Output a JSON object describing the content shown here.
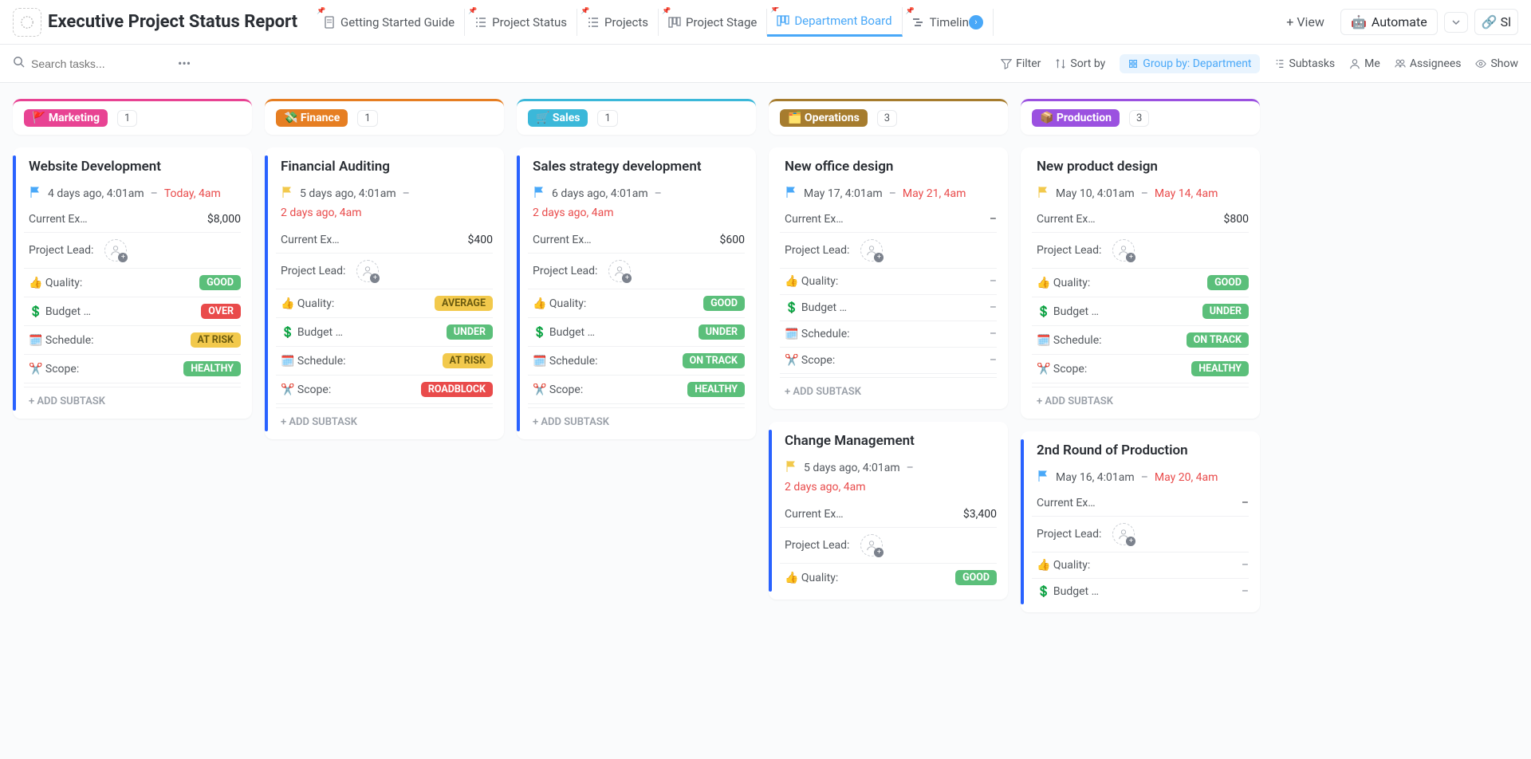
{
  "header": {
    "title": "Executive Project Status Report",
    "tabs": [
      {
        "label": "Getting Started Guide",
        "icon": "doc"
      },
      {
        "label": "Project Status",
        "icon": "list"
      },
      {
        "label": "Projects",
        "icon": "list"
      },
      {
        "label": "Project Stage",
        "icon": "board"
      },
      {
        "label": "Department Board",
        "icon": "board",
        "active": true
      },
      {
        "label": "Timelin",
        "icon": "timeline",
        "truncated": true
      }
    ],
    "add_view_label": "View",
    "automate_label": "Automate",
    "share_label": "Sl"
  },
  "toolbar": {
    "search_placeholder": "Search tasks...",
    "filter_label": "Filter",
    "sort_label": "Sort by",
    "group_label": "Group by: Department",
    "subtasks_label": "Subtasks",
    "me_label": "Me",
    "assignees_label": "Assignees",
    "show_label": "Show"
  },
  "labels": {
    "current_expense": "Current Ex…",
    "project_lead": "Project Lead:",
    "quality": "👍 Quality:",
    "budget": "💲 Budget …",
    "schedule": "🗓️ Schedule:",
    "scope": "✂️ Scope:",
    "add_subtask": "+ ADD SUBTASK",
    "empty": "–"
  },
  "status_text": {
    "GOOD": "GOOD",
    "AVERAGE": "AVERAGE",
    "OVER": "OVER",
    "UNDER": "UNDER",
    "AT_RISK": "AT RISK",
    "HEALTHY": "HEALTHY",
    "ROADBLOCK": "ROADBLOCK",
    "ON_TRACK": "ON TRACK"
  },
  "columns": [
    {
      "name": "Marketing",
      "emoji": "🚩",
      "color": "#e84393",
      "count": "1",
      "cards": [
        {
          "title": "Website Development",
          "bar": "#2962ff",
          "flag_color": "#49a8f8",
          "start": "4 days ago, 4:01am",
          "end": "Today, 4am",
          "end_red": true,
          "expense": "$8,000",
          "quality": "GOOD",
          "budget": "OVER",
          "schedule": "AT_RISK",
          "scope": "HEALTHY",
          "show_lead": true
        }
      ]
    },
    {
      "name": "Finance",
      "emoji": "💸",
      "color": "#e67e22",
      "count": "1",
      "cards": [
        {
          "title": "Financial Auditing",
          "bar": "#2962ff",
          "flag_color": "#f2c94c",
          "start": "5 days ago, 4:01am",
          "extra_date": "2 days ago, 4am",
          "expense": "$400",
          "quality": "AVERAGE",
          "budget": "UNDER",
          "schedule": "AT_RISK",
          "scope": "ROADBLOCK",
          "show_lead": true
        }
      ]
    },
    {
      "name": "Sales",
      "emoji": "🛒",
      "color": "#3bb8d9",
      "count": "1",
      "cards": [
        {
          "title": "Sales strategy development",
          "bar": "#2962ff",
          "flag_color": "#49a8f8",
          "start": "6 days ago, 4:01am",
          "extra_date": "2 days ago, 4am",
          "expense": "$600",
          "quality": "GOOD",
          "budget": "UNDER",
          "schedule": "ON_TRACK",
          "scope": "HEALTHY",
          "show_lead": true
        }
      ]
    },
    {
      "name": "Operations",
      "emoji": "🗂️",
      "color": "#a67c2e",
      "count": "3",
      "cards": [
        {
          "title": "New office design",
          "bar": "",
          "no_bar": true,
          "flag_color": "#49a8f8",
          "start": "May 17, 4:01am",
          "end": "May 21, 4am",
          "end_red": true,
          "expense": "–",
          "quality": null,
          "budget": null,
          "schedule": null,
          "scope": null,
          "show_lead": true
        },
        {
          "title": "Change Management",
          "bar": "#2962ff",
          "flag_color": "#f2c94c",
          "start": "5 days ago, 4:01am",
          "extra_date": "2 days ago, 4am",
          "expense": "$3,400",
          "quality": "GOOD",
          "show_lead": true,
          "truncated": true
        }
      ]
    },
    {
      "name": "Production",
      "emoji": "📦",
      "color": "#9b51e0",
      "count": "3",
      "cards": [
        {
          "title": "New product design",
          "bar": "",
          "no_bar": true,
          "flag_color": "#f2c94c",
          "start": "May 10, 4:01am",
          "end": "May 14, 4am",
          "end_red": true,
          "expense": "$800",
          "quality": "GOOD",
          "budget": "UNDER",
          "schedule": "ON_TRACK",
          "scope": "HEALTHY",
          "show_lead": true
        },
        {
          "title": "2nd Round of Production",
          "bar": "#2962ff",
          "flag_color": "#49a8f8",
          "start": "May 16, 4:01am",
          "end": "May 20, 4am",
          "end_red": true,
          "expense": "–",
          "quality": null,
          "budget": null,
          "show_lead": true,
          "truncated": true
        }
      ]
    }
  ]
}
